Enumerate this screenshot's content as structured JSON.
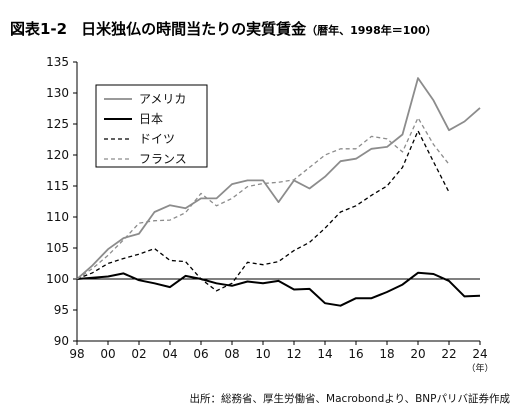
{
  "title": {
    "label": "図表1-2",
    "main": "日米独仏の時間当たりの実質賃金",
    "sub": "（暦年、1998年＝100）"
  },
  "source": "出所：総務省、厚生労働省、Macrobondより、BNPパリバ証券作成",
  "colors": {
    "アメリカ": "#8c8c8c",
    "日本": "#000000",
    "ドイツ": "#000000",
    "フランス": "#8c8c8c"
  },
  "chart_data": {
    "type": "line",
    "title": "日米独仏の時間当たりの実質賃金",
    "xlabel": "",
    "ylabel": "",
    "x_unit": "（年）",
    "ylim": [
      90,
      135
    ],
    "yticks": [
      90,
      95,
      100,
      105,
      110,
      115,
      120,
      125,
      130,
      135
    ],
    "xlim": [
      1998,
      2024
    ],
    "xticks": [
      1998,
      2000,
      2002,
      2004,
      2006,
      2008,
      2010,
      2012,
      2014,
      2016,
      2018,
      2020,
      2022,
      2024
    ],
    "xtick_labels": [
      "98",
      "00",
      "02",
      "04",
      "06",
      "08",
      "10",
      "12",
      "14",
      "16",
      "18",
      "20",
      "22",
      "24"
    ],
    "grid": false,
    "reference_line": 100,
    "legend": "top-left",
    "series": [
      {
        "name": "アメリカ",
        "style": "solid",
        "x": [
          1998,
          1999,
          2000,
          2001,
          2002,
          2003,
          2004,
          2005,
          2006,
          2007,
          2008,
          2009,
          2010,
          2011,
          2012,
          2013,
          2014,
          2015,
          2016,
          2017,
          2018,
          2019,
          2020,
          2021,
          2022,
          2023,
          2024
        ],
        "values": [
          100.0,
          102.2,
          104.8,
          106.6,
          107.3,
          110.8,
          111.9,
          111.4,
          113.0,
          113.0,
          115.3,
          115.9,
          115.9,
          112.4,
          115.9,
          114.6,
          116.5,
          119.0,
          119.4,
          121.0,
          121.3,
          123.3,
          132.4,
          128.8,
          124.0,
          125.4,
          127.6
        ]
      },
      {
        "name": "日本",
        "style": "solid",
        "x": [
          1998,
          1999,
          2000,
          2001,
          2002,
          2003,
          2004,
          2005,
          2006,
          2007,
          2008,
          2009,
          2010,
          2011,
          2012,
          2013,
          2014,
          2015,
          2016,
          2017,
          2018,
          2019,
          2020,
          2021,
          2022,
          2023,
          2024
        ],
        "values": [
          100.0,
          100.2,
          100.4,
          100.9,
          99.8,
          99.3,
          98.7,
          100.5,
          100.0,
          99.3,
          98.9,
          99.6,
          99.3,
          99.7,
          98.3,
          98.4,
          96.1,
          95.7,
          96.9,
          96.9,
          97.9,
          99.1,
          101.0,
          100.8,
          99.7,
          97.2,
          97.3
        ]
      },
      {
        "name": "ドイツ",
        "style": "dashed",
        "x": [
          1998,
          1999,
          2000,
          2001,
          2002,
          2003,
          2004,
          2005,
          2006,
          2007,
          2008,
          2009,
          2010,
          2011,
          2012,
          2013,
          2014,
          2015,
          2016,
          2017,
          2018,
          2019,
          2020,
          2021,
          2022
        ],
        "values": [
          100.0,
          101.0,
          102.5,
          103.3,
          104.0,
          104.9,
          103.0,
          102.8,
          100.0,
          98.1,
          99.3,
          102.7,
          102.3,
          102.8,
          104.6,
          105.9,
          108.2,
          110.8,
          111.8,
          113.5,
          115.0,
          118.0,
          123.9,
          118.9,
          114.0
        ]
      },
      {
        "name": "フランス",
        "style": "dashed",
        "x": [
          1998,
          1999,
          2000,
          2001,
          2002,
          2003,
          2004,
          2005,
          2006,
          2007,
          2008,
          2009,
          2010,
          2011,
          2012,
          2013,
          2014,
          2015,
          2016,
          2017,
          2018,
          2019,
          2020,
          2021,
          2022
        ],
        "values": [
          100.0,
          101.7,
          103.8,
          106.3,
          109.0,
          109.4,
          109.5,
          110.7,
          113.8,
          111.8,
          113.0,
          114.9,
          115.4,
          115.6,
          116.0,
          118.0,
          120.0,
          121.0,
          121.0,
          123.0,
          122.6,
          120.5,
          126.0,
          121.7,
          118.5
        ]
      }
    ]
  }
}
